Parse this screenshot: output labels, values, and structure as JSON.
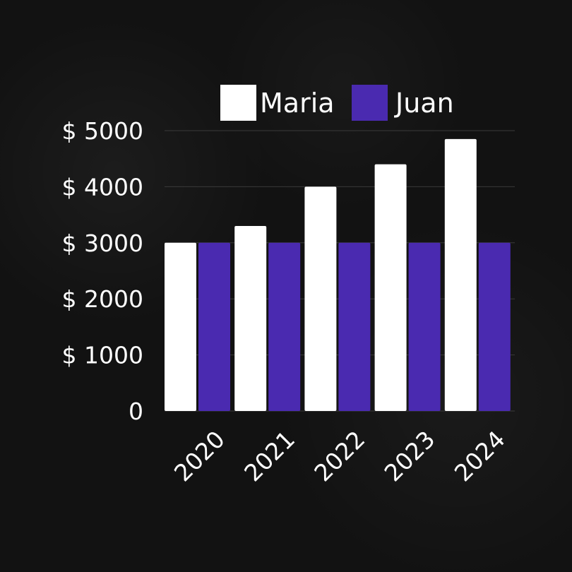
{
  "chart_data": {
    "type": "bar",
    "categories": [
      "2020",
      "2021",
      "2022",
      "2023",
      "2024"
    ],
    "series": [
      {
        "name": "Maria",
        "values": [
          3000,
          3300,
          4000,
          4400,
          4850
        ]
      },
      {
        "name": "Juan",
        "values": [
          3000,
          3000,
          3000,
          3000,
          3000
        ]
      }
    ],
    "ylim": [
      0,
      5000
    ],
    "yticks": [
      {
        "value": 0,
        "label": "0"
      },
      {
        "value": 1000,
        "label": "$ 1000"
      },
      {
        "value": 2000,
        "label": "$ 2000"
      },
      {
        "value": 3000,
        "label": "$ 3000"
      },
      {
        "value": 4000,
        "label": "$ 4000"
      },
      {
        "value": 5000,
        "label": "$ 5000"
      }
    ],
    "grid": true,
    "legend_position": "top",
    "colors": {
      "Maria": "#ffffff",
      "Juan": "#4a2ab0",
      "grid": "#3a3a3a",
      "text": "#ffffff"
    }
  }
}
